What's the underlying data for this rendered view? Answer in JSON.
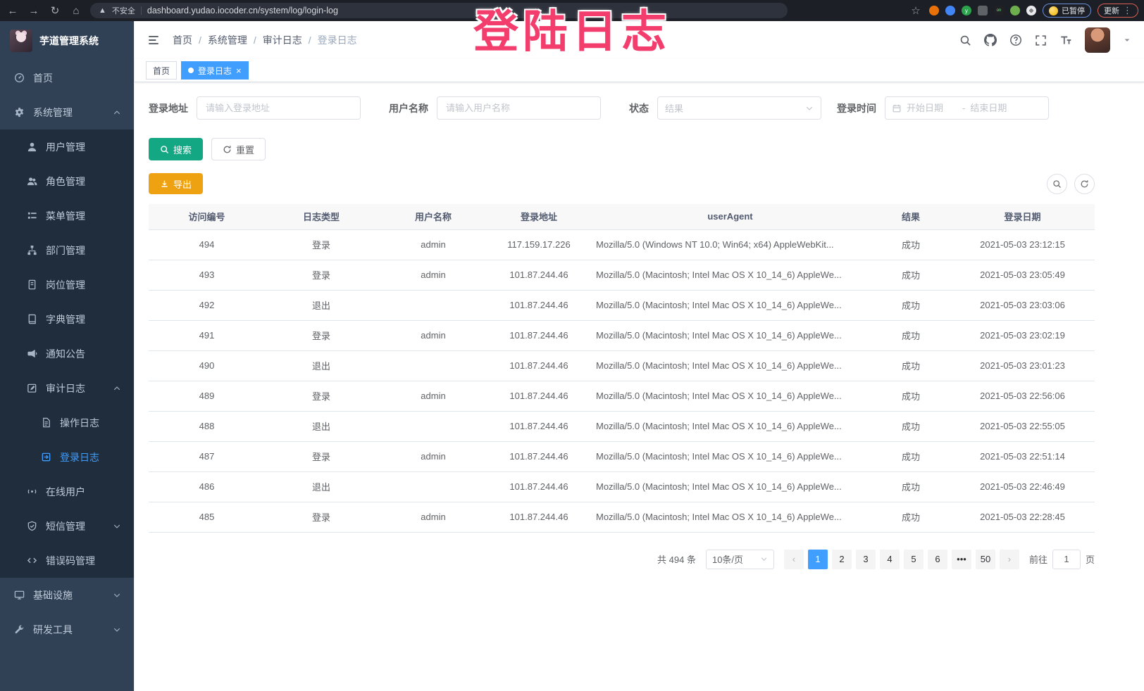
{
  "browser": {
    "security_label": "不安全",
    "url": "dashboard.yudao.iocoder.cn/system/log/login-log",
    "paused_badge": "已暂停",
    "update_button": "更新"
  },
  "overlay": {
    "text": "登陆日志"
  },
  "sidebar": {
    "title": "芋道管理系统",
    "items": [
      {
        "id": "home",
        "label": "首页",
        "icon": "dashboard",
        "depth": 0
      },
      {
        "id": "system",
        "label": "系统管理",
        "icon": "gear",
        "depth": 0,
        "arrow": "up"
      },
      {
        "id": "users",
        "label": "用户管理",
        "icon": "user",
        "depth": 1
      },
      {
        "id": "roles",
        "label": "角色管理",
        "icon": "users",
        "depth": 1
      },
      {
        "id": "menus",
        "label": "菜单管理",
        "icon": "menu-list",
        "depth": 1
      },
      {
        "id": "depts",
        "label": "部门管理",
        "icon": "tree",
        "depth": 1
      },
      {
        "id": "posts",
        "label": "岗位管理",
        "icon": "badge",
        "depth": 1
      },
      {
        "id": "dicts",
        "label": "字典管理",
        "icon": "book",
        "depth": 1
      },
      {
        "id": "notice",
        "label": "通知公告",
        "icon": "megaphone",
        "depth": 1
      },
      {
        "id": "audit-log",
        "label": "审计日志",
        "icon": "edit",
        "depth": 1,
        "arrow": "up"
      },
      {
        "id": "op-log",
        "label": "操作日志",
        "icon": "document",
        "depth": 2
      },
      {
        "id": "login-log",
        "label": "登录日志",
        "icon": "login",
        "depth": 2,
        "active": true
      },
      {
        "id": "online",
        "label": "在线用户",
        "icon": "online",
        "depth": 1
      },
      {
        "id": "sms",
        "label": "短信管理",
        "icon": "shield-check",
        "depth": 1,
        "arrow": "down"
      },
      {
        "id": "error-codes",
        "label": "错误码管理",
        "icon": "code",
        "depth": 1
      },
      {
        "id": "infra",
        "label": "基础设施",
        "icon": "monitor",
        "depth": 0,
        "arrow": "down"
      },
      {
        "id": "dev-tools",
        "label": "研发工具",
        "icon": "tools",
        "depth": 0,
        "arrow": "down"
      }
    ]
  },
  "breadcrumb": [
    "首页",
    "系统管理",
    "审计日志",
    "登录日志"
  ],
  "tags": [
    {
      "label": "首页",
      "active": false
    },
    {
      "label": "登录日志",
      "active": true,
      "closable": true
    }
  ],
  "filters": {
    "address_label": "登录地址",
    "address_placeholder": "请输入登录地址",
    "username_label": "用户名称",
    "username_placeholder": "请输入用户名称",
    "status_label": "状态",
    "status_placeholder": "结果",
    "time_label": "登录时间",
    "date_start_placeholder": "开始日期",
    "date_separator": "-",
    "date_end_placeholder": "结束日期",
    "search_label": "搜索",
    "reset_label": "重置"
  },
  "toolbar": {
    "export_label": "导出"
  },
  "table": {
    "headers": [
      "访问编号",
      "日志类型",
      "用户名称",
      "登录地址",
      "userAgent",
      "结果",
      "登录日期"
    ],
    "rows": [
      [
        "494",
        "登录",
        "admin",
        "117.159.17.226",
        "Mozilla/5.0 (Windows NT 10.0; Win64; x64) AppleWebKit...",
        "成功",
        "2021-05-03 23:12:15"
      ],
      [
        "493",
        "登录",
        "admin",
        "101.87.244.46",
        "Mozilla/5.0 (Macintosh; Intel Mac OS X 10_14_6) AppleWe...",
        "成功",
        "2021-05-03 23:05:49"
      ],
      [
        "492",
        "退出",
        "",
        "101.87.244.46",
        "Mozilla/5.0 (Macintosh; Intel Mac OS X 10_14_6) AppleWe...",
        "成功",
        "2021-05-03 23:03:06"
      ],
      [
        "491",
        "登录",
        "admin",
        "101.87.244.46",
        "Mozilla/5.0 (Macintosh; Intel Mac OS X 10_14_6) AppleWe...",
        "成功",
        "2021-05-03 23:02:19"
      ],
      [
        "490",
        "退出",
        "",
        "101.87.244.46",
        "Mozilla/5.0 (Macintosh; Intel Mac OS X 10_14_6) AppleWe...",
        "成功",
        "2021-05-03 23:01:23"
      ],
      [
        "489",
        "登录",
        "admin",
        "101.87.244.46",
        "Mozilla/5.0 (Macintosh; Intel Mac OS X 10_14_6) AppleWe...",
        "成功",
        "2021-05-03 22:56:06"
      ],
      [
        "488",
        "退出",
        "",
        "101.87.244.46",
        "Mozilla/5.0 (Macintosh; Intel Mac OS X 10_14_6) AppleWe...",
        "成功",
        "2021-05-03 22:55:05"
      ],
      [
        "487",
        "登录",
        "admin",
        "101.87.244.46",
        "Mozilla/5.0 (Macintosh; Intel Mac OS X 10_14_6) AppleWe...",
        "成功",
        "2021-05-03 22:51:14"
      ],
      [
        "486",
        "退出",
        "",
        "101.87.244.46",
        "Mozilla/5.0 (Macintosh; Intel Mac OS X 10_14_6) AppleWe...",
        "成功",
        "2021-05-03 22:46:49"
      ],
      [
        "485",
        "登录",
        "admin",
        "101.87.244.46",
        "Mozilla/5.0 (Macintosh; Intel Mac OS X 10_14_6) AppleWe...",
        "成功",
        "2021-05-03 22:28:45"
      ]
    ]
  },
  "pagination": {
    "total_text": "共 494 条",
    "page_size": "10条/页",
    "pages": [
      "1",
      "2",
      "3",
      "4",
      "5",
      "6",
      "•••",
      "50"
    ],
    "active_page": "1",
    "goto_label": "前往",
    "goto_value": "1",
    "goto_suffix": "页"
  },
  "colors": {
    "primary": "#409EFF",
    "sidebar_bg": "#304156",
    "submenu_bg": "#1F2D3D",
    "search_button": "#13A883",
    "export_button": "#EFA211",
    "overlay_pink": "#F23D6D"
  }
}
